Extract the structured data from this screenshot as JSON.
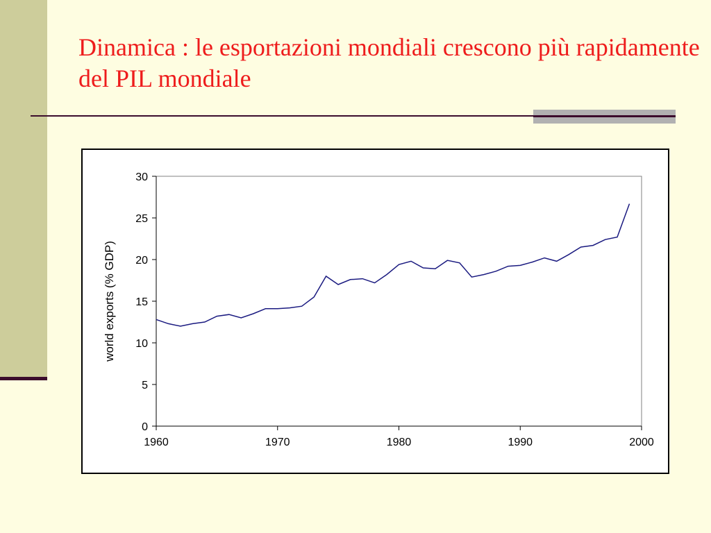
{
  "slide": {
    "title": "Dinamica : le esportazioni mondiali crescono più rapidamente del PIL mondiale"
  },
  "colors": {
    "background": "#fefde1",
    "sidebar": "#cdcd9b",
    "accent_dark": "#3b0c2c",
    "accent_gray": "#b1b1b1",
    "title": "#ee1c1c",
    "line": "#1a1a80"
  },
  "chart_data": {
    "type": "line",
    "title": "",
    "xlabel": "",
    "ylabel": "world exports (% GDP)",
    "xlim": [
      1960,
      2000
    ],
    "ylim": [
      0,
      30
    ],
    "xticks": [
      1960,
      1970,
      1980,
      1990,
      2000
    ],
    "yticks": [
      0,
      5,
      10,
      15,
      20,
      25,
      30
    ],
    "grid": false,
    "legend": "none",
    "series": [
      {
        "x": [
          1960,
          1961,
          1962,
          1963,
          1964,
          1965,
          1966,
          1967,
          1968,
          1969,
          1970,
          1971,
          1972,
          1973,
          1974,
          1975,
          1976,
          1977,
          1978,
          1979,
          1980,
          1981,
          1982,
          1983,
          1984,
          1985,
          1986,
          1987,
          1988,
          1989,
          1990,
          1991,
          1992,
          1993,
          1994,
          1995,
          1996,
          1997,
          1998,
          1999
        ],
        "values": [
          12.8,
          12.3,
          12.0,
          12.3,
          12.5,
          13.2,
          13.4,
          13.0,
          13.5,
          14.1,
          14.1,
          14.2,
          14.4,
          15.5,
          18.0,
          17.0,
          17.6,
          17.7,
          17.2,
          18.2,
          19.4,
          19.8,
          19.0,
          18.9,
          19.9,
          19.6,
          17.9,
          18.2,
          18.6,
          19.2,
          19.3,
          19.7,
          20.2,
          19.8,
          20.6,
          21.5,
          21.7,
          22.4,
          22.7,
          26.7
        ]
      }
    ]
  }
}
